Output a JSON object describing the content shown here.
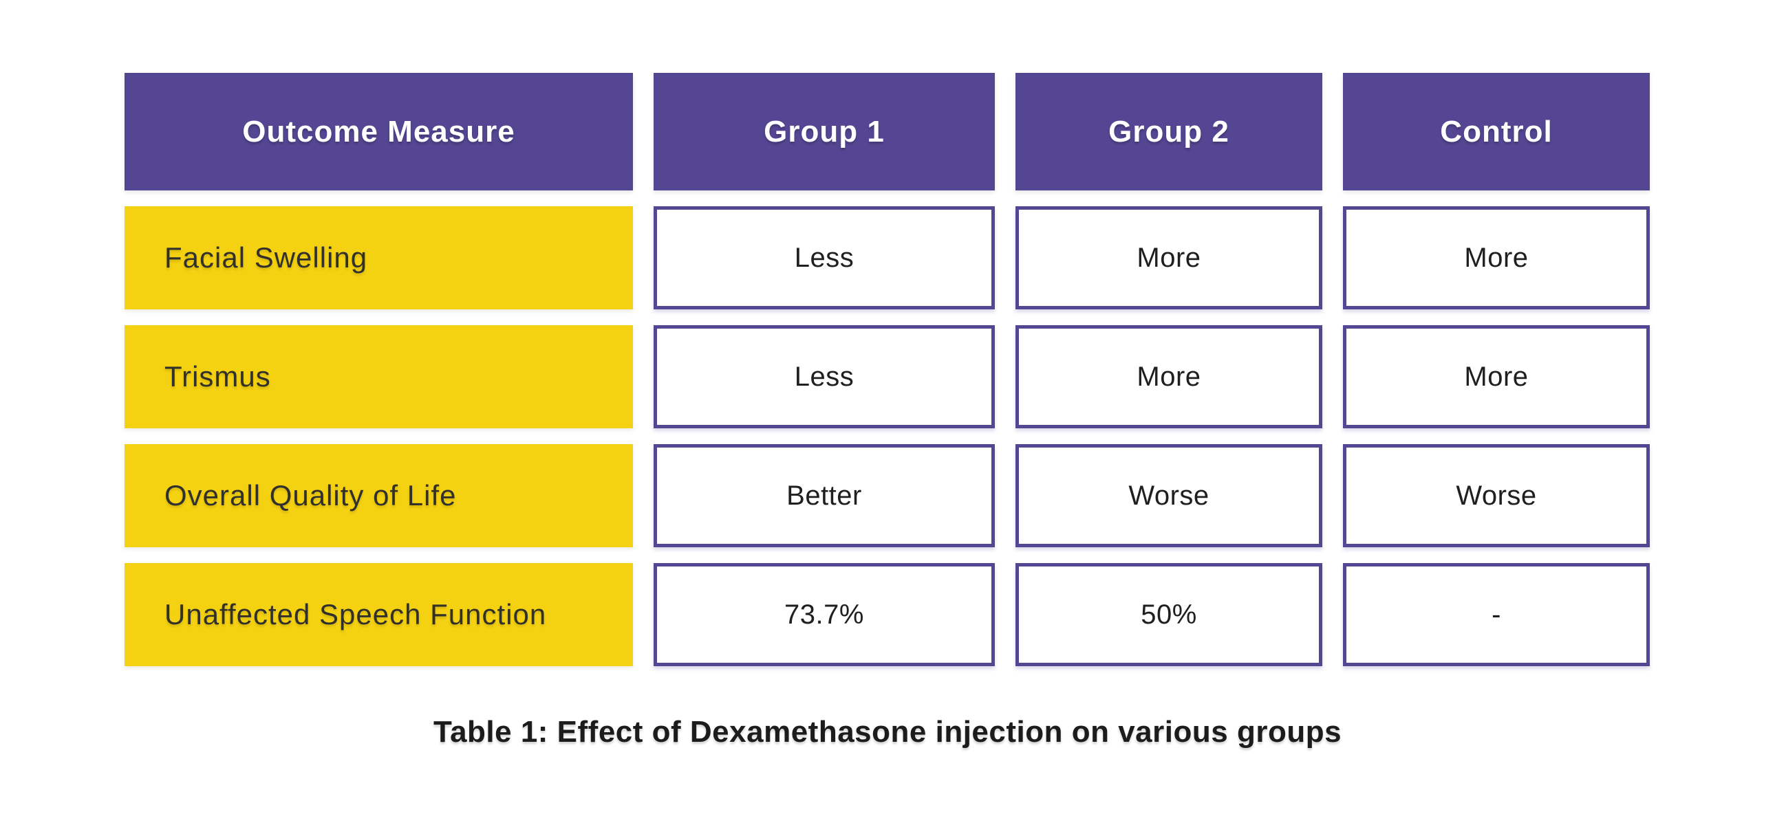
{
  "chart_data": {
    "type": "table",
    "title": "Table 1: Effect of Dexamethasone injection on various groups",
    "columns": [
      "Outcome Measure",
      "Group 1",
      "Group 2",
      "Control"
    ],
    "rows": [
      [
        "Facial Swelling",
        "Less",
        "More",
        "More"
      ],
      [
        "Trismus",
        "Less",
        "More",
        "More"
      ],
      [
        "Overall Quality of Life",
        "Better",
        "Worse",
        "Worse"
      ],
      [
        "Unaffected Speech Function",
        "73.7%",
        "50%",
        "-"
      ]
    ],
    "layout": {
      "header_style": "solid purple fill, white bold text",
      "row_label_style": "solid yellow fill, dark left-aligned text",
      "value_style": "white fill with purple border, centered text",
      "caption_position": "bottom-center"
    }
  },
  "colors": {
    "header_bg": "#554693",
    "header_text": "#ffffff",
    "label_bg": "#f4d111",
    "label_text": "#32302a",
    "value_text": "#1f1f1f",
    "cell_border": "#554693",
    "caption_text": "#1c1c1c",
    "background": "#ffffff"
  }
}
